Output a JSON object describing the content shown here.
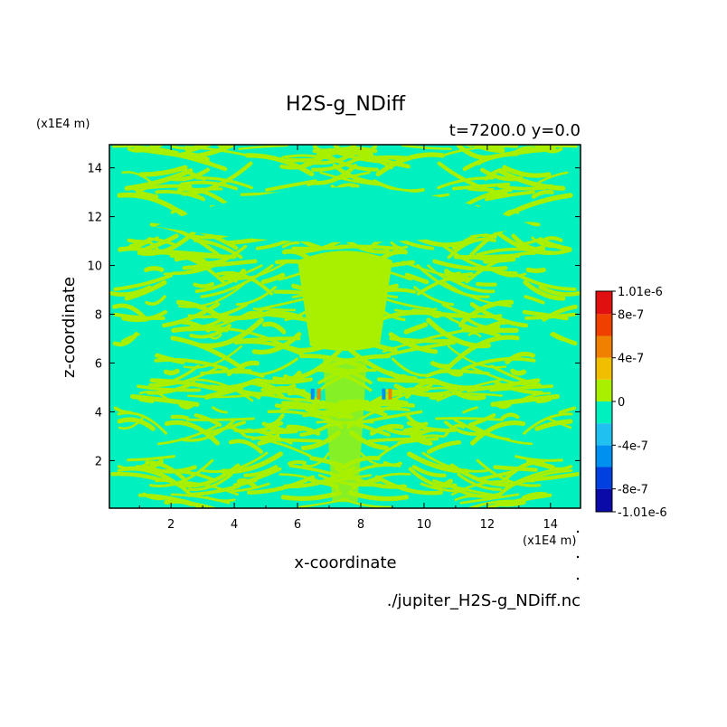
{
  "chart_data": {
    "type": "heatmap",
    "title": "H2S-g_NDiff",
    "subtitle": "t=7200.0 y=0.0",
    "xlabel": "x-coordinate",
    "ylabel": "z-coordinate",
    "x_unit": "(x1E4 m)",
    "z_unit": "(x1E4 m)",
    "xlim": [
      0.05,
      14.95
    ],
    "ylim": [
      0.05,
      14.95
    ],
    "x_ticks": [
      2,
      4,
      6,
      8,
      10,
      12,
      14
    ],
    "y_ticks": [
      2,
      4,
      6,
      8,
      10,
      12,
      14
    ],
    "colorbar": {
      "levels": [
        -1.01e-06,
        -8e-07,
        -6e-07,
        -4e-07,
        -2e-07,
        0,
        2e-07,
        4e-07,
        6e-07,
        8e-07,
        1.01e-06
      ],
      "labels": [
        "1.01e-6",
        "8e-7",
        "4e-7",
        "0",
        "-4e-7",
        "-8e-7",
        "-1.01e-6"
      ],
      "label_values": [
        1.01e-06,
        8e-07,
        4e-07,
        0,
        -4e-07,
        -8e-07,
        -1.01e-06
      ],
      "colors": [
        "#0a0aa8",
        "#0040e0",
        "#0090f0",
        "#20c0f0",
        "#00f0c0",
        "#a8f000",
        "#f0c000",
        "#f08000",
        "#f04000",
        "#e01010"
      ]
    },
    "field_description_levels": {
      "dominant_negative_small": "#00f0c0",
      "dominant_positive_small": "#a8f000"
    }
  },
  "footer": {
    "filename": "./jupiter_H2S-g_NDiff.nc"
  },
  "colors": {
    "background": "#ffffff",
    "frame": "#000000"
  }
}
